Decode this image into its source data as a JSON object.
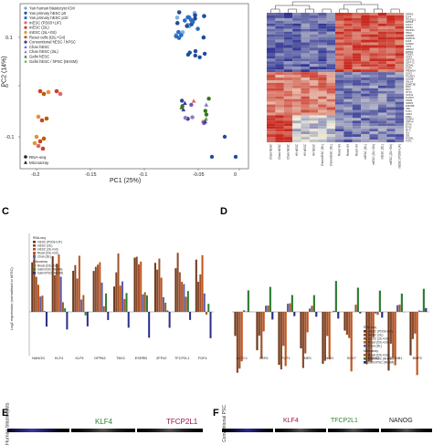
{
  "panels": {
    "a": "",
    "b": "",
    "c": "C",
    "d": "D",
    "e": "E",
    "f": "F"
  },
  "pca": {
    "xlabel": "PC1 (25%)",
    "ylabel": "PC2 (14%)",
    "xticks": [
      "-0.2",
      "-0.15",
      "-0.1",
      "-0.05",
      "0"
    ],
    "yticks": [
      "0.1",
      "0",
      "-0.1"
    ],
    "legend": [
      {
        "label": "Yan human blastocyst ICM",
        "color": "#6fa8dc",
        "shape": "circle"
      },
      {
        "label": "Yan primary hESC p0",
        "color": "#1f4e9c",
        "shape": "circle"
      },
      {
        "label": "Yan primary hESC p10",
        "color": "#2a6cc4",
        "shape": "circle"
      },
      {
        "label": "mESC (PD03+LIF)",
        "color": "#e06666",
        "shape": "circle"
      },
      {
        "label": "mESC (2iL)",
        "color": "#cc4125",
        "shape": "circle"
      },
      {
        "label": "mESC (2iL+Gö)",
        "color": "#e69138",
        "shape": "circle"
      },
      {
        "label": "Reset cells (t2iL+Gö)",
        "color": "#b45f06",
        "shape": "circle"
      },
      {
        "label": "Conventional hESC / hPSC",
        "color": "#3c3c9c",
        "shape": "circle"
      },
      {
        "label": "Chan hESC",
        "color": "#6a5acd",
        "shape": "triangle"
      },
      {
        "label": "Chan hESC (3iL)",
        "color": "#8e7cc3",
        "shape": "triangle"
      },
      {
        "label": "Gafni hESC",
        "color": "#38761d",
        "shape": "triangle"
      },
      {
        "label": "Gafni hESC / hPSC (NHSM)",
        "color": "#6aa84f",
        "shape": "triangle"
      }
    ],
    "legend2": [
      {
        "label": "RNA-seq",
        "shape": "circle"
      },
      {
        "label": "Microarray",
        "shape": "triangle"
      }
    ]
  },
  "heatmap": {
    "col_labels": [
      "Chan hESC",
      "Chan hESC",
      "Chan hESC",
      "H9 hESC",
      "H9 hESC",
      "H9 hESC",
      "Chan hESC (3iL)",
      "Chan hESC (3iL)",
      "Reset H9",
      "Reset H9",
      "Reset H9",
      "mESC (2iL)",
      "mESC (2iL+Gö)",
      "mESC (2iL)",
      "mESC (2iL+Gö)",
      "mESC (PD03+LIF)"
    ],
    "row_labels": [
      "DPPA3",
      "KLF4",
      "TFCP2L1",
      "DPPA5",
      "KLF17",
      "ZFP42",
      "NANOG",
      "TBX3",
      "ESRRB",
      "DNMT3L",
      "KLF5",
      "SUSD2",
      "UTF1",
      "ARGFX",
      "DPPA2",
      "TDGF1",
      "GDF3",
      "LEFTY1",
      "LEFTY2",
      "NODAL",
      "FGF4",
      "PRDM14",
      "SOX2",
      "POU5F1",
      "LIN28B",
      "SALL4",
      "DNMT3B",
      "ZIC2",
      "ZIC3",
      "OTX2",
      "SOX11",
      "FOXD3",
      "CDH2",
      "SFRP2",
      "ZNF398",
      "VIM",
      "THY1",
      "CD24",
      "FZD7",
      "DUSP6",
      "SPRY4",
      "ETV4",
      "ETV5",
      "MYC",
      "ID1",
      "ID3",
      "PODXL",
      "FGF2"
    ]
  },
  "c_chart": {
    "ylabel": "Log2 expression (normalised to hESC)",
    "legend_rna_title": "RNA-seq",
    "legend_rna": [
      "mESC (PD03+LIF)",
      "mESC (2iL)",
      "mESC (2iL+Gö)",
      "Reset (t2iL+Gö)",
      "Chan (3iL)"
    ],
    "legend_micro_title": "Microarray",
    "legend_micro": [
      "Reset (t2iL+Gö)",
      "Gafni ESC (NHSM)",
      "Gafni iPSC (NHSM)"
    ],
    "colors": [
      "#6b3a1e",
      "#8b4a2a",
      "#a0522d",
      "#c1551f",
      "#5b5fa8",
      "#a25a2a",
      "#2e7d32",
      "#2b2f8a"
    ],
    "categories": [
      "NANOG",
      "KLF4",
      "KLF5",
      "DPPA3",
      "TBX3",
      "ESRRB",
      "ZFP42",
      "TFCP2L1",
      "FGF4"
    ]
  },
  "d_chart": {
    "legend_rna_title": "RNA-seq",
    "legend_rna": [
      "mESC (PD03+LIF)",
      "mESC (2iL)",
      "mESC (2iL+Gö)",
      "Reset (t2iL+Gö)",
      "Chan (3iL)"
    ],
    "legend_micro_title": "Microarray",
    "legend_micro": [
      "Reset (t2iL+Gö)",
      "Gafni ESC (NHSM)",
      "Gafni iPSC (NHSM)"
    ],
    "colors": [
      "#6b3a1e",
      "#8b4a2a",
      "#a0522d",
      "#c1551f",
      "#5b5fa8",
      "#a25a2a",
      "#2e7d32",
      "#2b2f8a"
    ],
    "categories": [
      "ACTC1",
      "CER1",
      "FUT1",
      "NES",
      "NOG",
      "SOX7",
      "FOXA2",
      "CTNNB1",
      "BMP2"
    ]
  },
  "e": {
    "titles": [
      "KLF4",
      "TFCP2L1"
    ],
    "side": "Human blastocysts"
  },
  "f": {
    "titles": [
      "KLF4",
      "TFCP2L1",
      "NANOG"
    ],
    "side": "Conventional PSC"
  },
  "colors": {
    "klf4": "#4caf50",
    "tfcp2l1": "#c2185b",
    "nanog": "#222222"
  }
}
